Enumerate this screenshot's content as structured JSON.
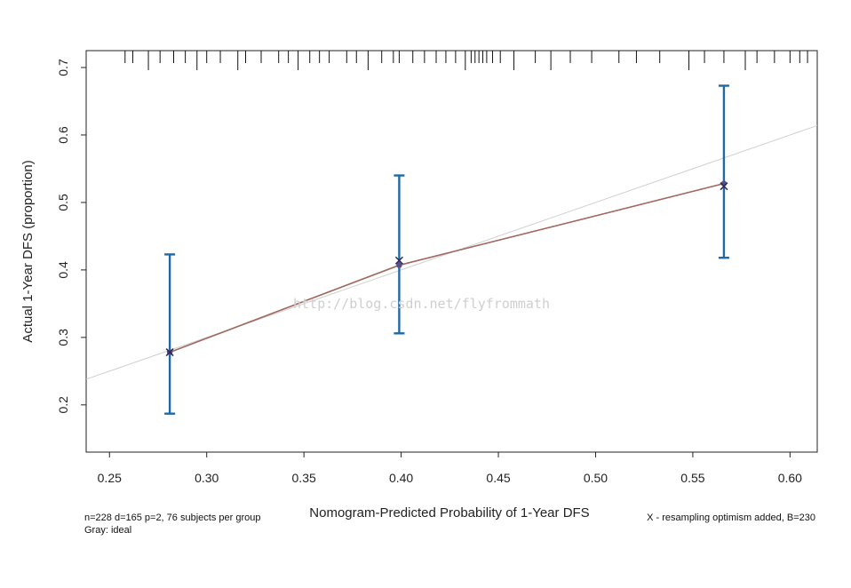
{
  "chart_data": {
    "type": "line",
    "title": "",
    "xlabel": "Nomogram-Predicted Probability of 1-Year DFS",
    "ylabel": "Actual 1-Year DFS (proportion)",
    "xlim": [
      0.238,
      0.614
    ],
    "ylim": [
      0.13,
      0.725
    ],
    "x_ticks": [
      0.25,
      0.3,
      0.35,
      0.4,
      0.45,
      0.5,
      0.55,
      0.6
    ],
    "x_tick_labels": [
      "0.25",
      "0.30",
      "0.35",
      "0.40",
      "0.45",
      "0.50",
      "0.55",
      "0.60"
    ],
    "y_ticks": [
      0.2,
      0.3,
      0.4,
      0.5,
      0.6,
      0.7
    ],
    "y_tick_labels": [
      "0.2",
      "0.3",
      "0.4",
      "0.5",
      "0.6",
      "0.7"
    ],
    "grid": false,
    "colors": {
      "ideal": "#d0d0d0",
      "apparent": "#a0685e",
      "errorbar": "#1f6aa5",
      "point": "#5a4d8a",
      "corrected": "#2a2a5a"
    },
    "series": [
      {
        "name": "Gray: ideal",
        "kind": "ideal-line",
        "x": [
          0.238,
          0.614
        ],
        "y": [
          0.238,
          0.614
        ]
      },
      {
        "kind": "apparent",
        "x": [
          0.281,
          0.399,
          0.566
        ],
        "y": [
          0.278,
          0.407,
          0.528
        ]
      },
      {
        "kind": "bias-corrected",
        "x": [
          0.281,
          0.399,
          0.566
        ],
        "y": [
          0.278,
          0.414,
          0.524
        ]
      }
    ],
    "error_bars": [
      {
        "x": 0.281,
        "low": 0.187,
        "high": 0.423
      },
      {
        "x": 0.399,
        "low": 0.306,
        "high": 0.54
      },
      {
        "x": 0.566,
        "low": 0.418,
        "high": 0.673
      }
    ],
    "rug_ticks": [
      {
        "x": 0.258,
        "long": false
      },
      {
        "x": 0.262,
        "long": false
      },
      {
        "x": 0.27,
        "long": true
      },
      {
        "x": 0.276,
        "long": false
      },
      {
        "x": 0.283,
        "long": false
      },
      {
        "x": 0.289,
        "long": false
      },
      {
        "x": 0.295,
        "long": true
      },
      {
        "x": 0.3,
        "long": false
      },
      {
        "x": 0.307,
        "long": false
      },
      {
        "x": 0.316,
        "long": true
      },
      {
        "x": 0.32,
        "long": false
      },
      {
        "x": 0.328,
        "long": false
      },
      {
        "x": 0.337,
        "long": false
      },
      {
        "x": 0.342,
        "long": false
      },
      {
        "x": 0.347,
        "long": true
      },
      {
        "x": 0.353,
        "long": false
      },
      {
        "x": 0.358,
        "long": false
      },
      {
        "x": 0.363,
        "long": false
      },
      {
        "x": 0.372,
        "long": false
      },
      {
        "x": 0.377,
        "long": false
      },
      {
        "x": 0.383,
        "long": true
      },
      {
        "x": 0.39,
        "long": false
      },
      {
        "x": 0.396,
        "long": false
      },
      {
        "x": 0.399,
        "long": false
      },
      {
        "x": 0.406,
        "long": false
      },
      {
        "x": 0.412,
        "long": false
      },
      {
        "x": 0.418,
        "long": false
      },
      {
        "x": 0.423,
        "long": false
      },
      {
        "x": 0.428,
        "long": false
      },
      {
        "x": 0.433,
        "long": true
      },
      {
        "x": 0.436,
        "long": false
      },
      {
        "x": 0.438,
        "long": false
      },
      {
        "x": 0.44,
        "long": false
      },
      {
        "x": 0.442,
        "long": false
      },
      {
        "x": 0.444,
        "long": false
      },
      {
        "x": 0.447,
        "long": false
      },
      {
        "x": 0.451,
        "long": false
      },
      {
        "x": 0.458,
        "long": true
      },
      {
        "x": 0.469,
        "long": false
      },
      {
        "x": 0.477,
        "long": true
      },
      {
        "x": 0.487,
        "long": false
      },
      {
        "x": 0.498,
        "long": false
      },
      {
        "x": 0.512,
        "long": false
      },
      {
        "x": 0.521,
        "long": false
      },
      {
        "x": 0.533,
        "long": false
      },
      {
        "x": 0.548,
        "long": true
      },
      {
        "x": 0.556,
        "long": false
      },
      {
        "x": 0.566,
        "long": false
      },
      {
        "x": 0.577,
        "long": true
      },
      {
        "x": 0.583,
        "long": false
      },
      {
        "x": 0.592,
        "long": false
      },
      {
        "x": 0.6,
        "long": false
      },
      {
        "x": 0.605,
        "long": false
      },
      {
        "x": 0.609,
        "long": false
      }
    ]
  },
  "footnote": {
    "line1": "n=228 d=165 p=2, 76 subjects per group",
    "line2": "Gray: ideal",
    "right": "X - resampling optimism added, B=230"
  },
  "watermark": "http://blog.csdn.net/flyfrommath"
}
